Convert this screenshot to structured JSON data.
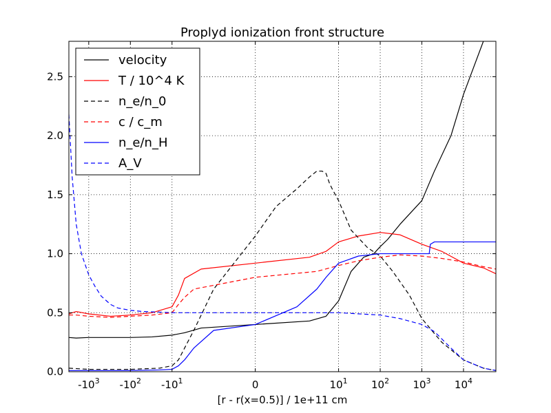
{
  "chart_data": {
    "type": "line",
    "title": "Proplyd ionization front structure",
    "xlabel": "[r - r(x=0.5)] / 1e+11 cm",
    "ylabel": "",
    "x_scale": "symlog",
    "xlim": [
      -3000,
      60000
    ],
    "ylim": [
      0.0,
      2.8
    ],
    "grid": true,
    "grid_style": "dotted",
    "legend_position": "upper-left",
    "x_ticks": [
      {
        "value": -1000,
        "label": "-10³",
        "base": "-10",
        "exp": "3"
      },
      {
        "value": -100,
        "label": "-10²",
        "base": "-10",
        "exp": "2"
      },
      {
        "value": -10,
        "label": "-10¹",
        "base": "-10",
        "exp": "1"
      },
      {
        "value": 0,
        "label": "0",
        "base": "0",
        "exp": ""
      },
      {
        "value": 10,
        "label": "10¹",
        "base": "10",
        "exp": "1"
      },
      {
        "value": 100,
        "label": "10²",
        "base": "10",
        "exp": "2"
      },
      {
        "value": 1000,
        "label": "10³",
        "base": "10",
        "exp": "3"
      },
      {
        "value": 10000,
        "label": "10⁴",
        "base": "10",
        "exp": "4"
      }
    ],
    "y_ticks": [
      {
        "value": 0.0,
        "label": "0.0"
      },
      {
        "value": 0.5,
        "label": "0.5"
      },
      {
        "value": 1.0,
        "label": "1.0"
      },
      {
        "value": 1.5,
        "label": "1.5"
      },
      {
        "value": 2.0,
        "label": "2.0"
      },
      {
        "value": 2.5,
        "label": "2.5"
      }
    ],
    "series": [
      {
        "name": "velocity",
        "color": "#000000",
        "dash": "solid",
        "x": [
          -3000,
          -2000,
          -1000,
          -300,
          -100,
          -30,
          -10,
          -5,
          -2,
          0,
          2,
          5,
          10,
          20,
          40,
          70,
          100,
          150,
          300,
          1000,
          2000,
          5000,
          10000,
          30000
        ],
        "y": [
          0.29,
          0.285,
          0.29,
          0.29,
          0.29,
          0.295,
          0.31,
          0.33,
          0.37,
          0.4,
          0.43,
          0.47,
          0.6,
          0.85,
          0.97,
          1.0,
          1.06,
          1.12,
          1.25,
          1.45,
          1.7,
          2.0,
          2.35,
          2.8
        ]
      },
      {
        "name": "T / 10^4 K",
        "color": "#ff0000",
        "dash": "solid",
        "x": [
          -3000,
          -2000,
          -1000,
          -300,
          -100,
          -30,
          -10,
          -7,
          -5,
          -2,
          0,
          2,
          5,
          10,
          30,
          100,
          300,
          1000,
          3000,
          10000,
          30000,
          60000
        ],
        "y": [
          0.49,
          0.51,
          0.49,
          0.47,
          0.48,
          0.5,
          0.55,
          0.65,
          0.79,
          0.87,
          0.92,
          0.97,
          1.02,
          1.1,
          1.15,
          1.18,
          1.16,
          1.08,
          1.02,
          0.92,
          0.88,
          0.83
        ]
      },
      {
        "name": "n_e/n_0",
        "color": "#000000",
        "dash": "dashed",
        "x": [
          -3000,
          -1000,
          -100,
          -20,
          -10,
          -7,
          -5,
          -3,
          -1,
          0,
          0.5,
          1,
          2,
          3,
          4,
          5,
          6,
          7,
          10,
          20,
          50,
          100,
          200,
          500,
          1000,
          3000,
          10000,
          30000,
          60000
        ],
        "y": [
          0.03,
          0.02,
          0.02,
          0.03,
          0.05,
          0.1,
          0.2,
          0.35,
          0.7,
          1.15,
          1.4,
          1.55,
          1.65,
          1.7,
          1.7,
          1.68,
          1.6,
          1.55,
          1.45,
          1.2,
          1.05,
          0.98,
          0.85,
          0.65,
          0.45,
          0.25,
          0.1,
          0.03,
          0.01
        ]
      },
      {
        "name": "c / c_m",
        "color": "#ff0000",
        "dash": "dashed",
        "x": [
          -3000,
          -2000,
          -1000,
          -300,
          -100,
          -30,
          -10,
          -7,
          -5,
          -3,
          0,
          3,
          10,
          30,
          100,
          300,
          1000,
          3000,
          10000,
          30000,
          60000
        ],
        "y": [
          0.48,
          0.48,
          0.47,
          0.46,
          0.47,
          0.48,
          0.5,
          0.57,
          0.63,
          0.7,
          0.8,
          0.85,
          0.9,
          0.94,
          0.97,
          0.99,
          0.98,
          0.96,
          0.93,
          0.89,
          0.87
        ]
      },
      {
        "name": "n_e/n_H",
        "color": "#0000ff",
        "dash": "solid",
        "x": [
          -3000,
          -1000,
          -100,
          -20,
          -10,
          -7,
          -5,
          -3,
          -1,
          0,
          1,
          3,
          5,
          10,
          30,
          100,
          300,
          1000,
          1500,
          1600,
          2000,
          5000,
          10000,
          30000,
          60000
        ],
        "y": [
          0.01,
          0.01,
          0.01,
          0.015,
          0.02,
          0.05,
          0.1,
          0.2,
          0.35,
          0.4,
          0.55,
          0.7,
          0.8,
          0.92,
          0.98,
          1.0,
          1.0,
          1.0,
          1.0,
          1.08,
          1.1,
          1.1,
          1.1,
          1.1,
          1.1
        ]
      },
      {
        "name": "A_V",
        "color": "#0000ff",
        "dash": "dashed",
        "x": [
          -3000,
          -2500,
          -2000,
          -1500,
          -1000,
          -700,
          -500,
          -300,
          -200,
          -100,
          -50,
          -20,
          -10,
          0,
          10,
          100,
          300,
          1000,
          2000,
          5000,
          10000,
          30000,
          60000
        ],
        "y": [
          2.18,
          1.65,
          1.25,
          1.0,
          0.82,
          0.72,
          0.64,
          0.57,
          0.54,
          0.52,
          0.51,
          0.505,
          0.5,
          0.5,
          0.5,
          0.48,
          0.45,
          0.4,
          0.34,
          0.2,
          0.1,
          0.03,
          0.01
        ]
      }
    ]
  }
}
